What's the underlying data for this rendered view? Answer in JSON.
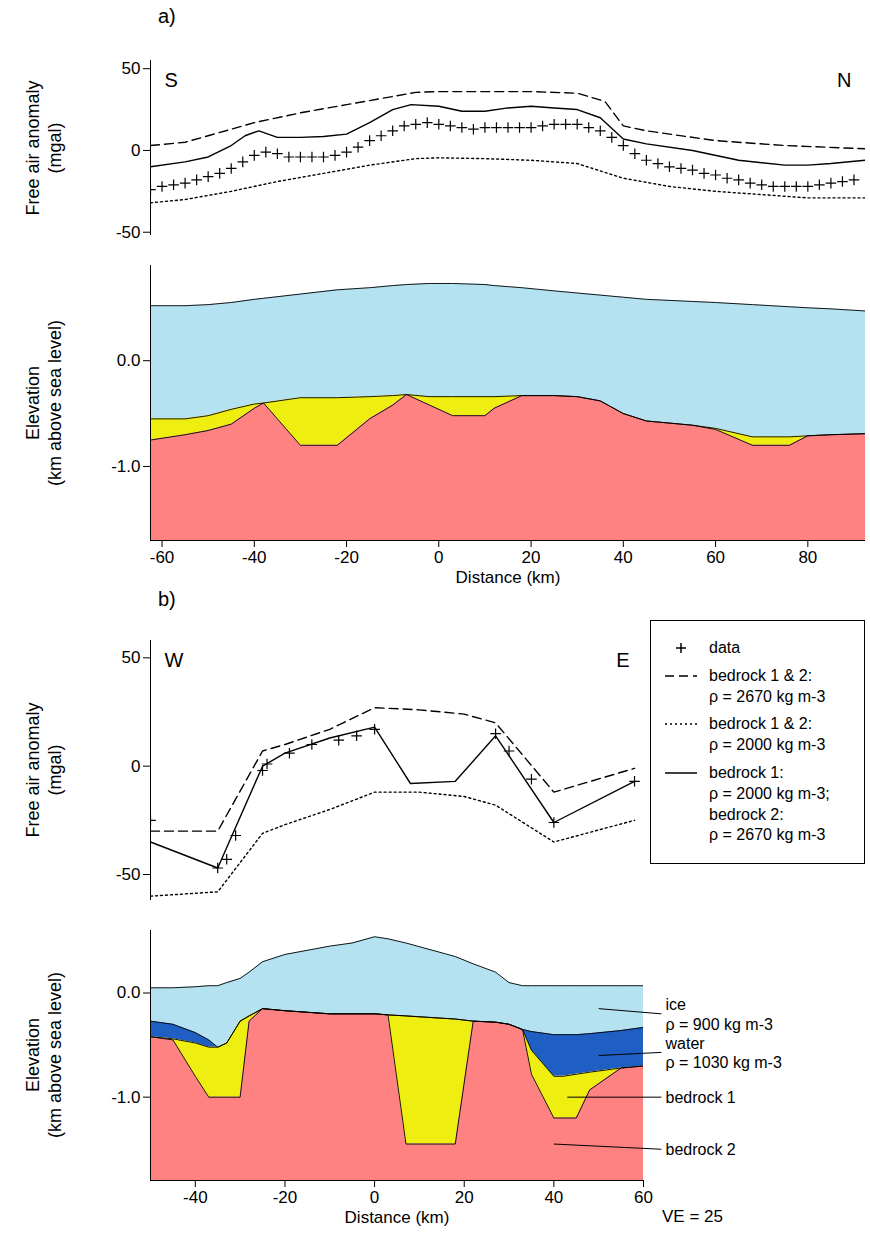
{
  "chart_data": [
    {
      "type": "line",
      "title": "a)",
      "annotations": [
        "S",
        "N"
      ],
      "y_label": "Free air anomaly (mgal)",
      "xlim": [
        -62.5,
        92.5
      ],
      "ylim": [
        -52,
        55
      ],
      "yticks": [
        -50,
        0,
        50
      ],
      "tick_labels": "y",
      "series": [
        {
          "name": "data",
          "color": "#000000",
          "marker": "plus",
          "x": [
            -62.5,
            -60,
            -57.5,
            -55,
            -52.5,
            -50,
            -47.5,
            -45,
            -42.5,
            -40,
            -37.5,
            -35,
            -32.5,
            -30,
            -27.5,
            -25,
            -22.5,
            -20,
            -17.5,
            -15,
            -12.5,
            -10,
            -7.5,
            -5,
            -2.5,
            0,
            2.5,
            5,
            7.5,
            10,
            12.5,
            15,
            17.5,
            20,
            22.5,
            25,
            27.5,
            30,
            32.5,
            35,
            37.5,
            40,
            42.5,
            45,
            47.5,
            50,
            52.5,
            55,
            57.5,
            60,
            62.5,
            65,
            67.5,
            70,
            72.5,
            75,
            77.5,
            80,
            82.5,
            85,
            87.5,
            90
          ],
          "values": [
            -24,
            -22,
            -21,
            -20,
            -18,
            -16,
            -14,
            -11,
            -7,
            -3,
            -1,
            -2,
            -4,
            -4,
            -4,
            -4,
            -3,
            -1,
            2,
            6,
            9,
            12,
            15,
            16,
            17,
            16,
            15,
            14,
            13,
            14,
            14,
            14,
            14,
            14,
            15,
            16,
            16,
            16,
            14,
            12,
            8,
            3,
            -2,
            -6,
            -8,
            -10,
            -11,
            -12,
            -14,
            -15,
            -17,
            -18,
            -20,
            -21,
            -22,
            -22,
            -22,
            -22,
            -21,
            -20,
            -19,
            -18
          ]
        },
        {
          "name": "bedrock 1 & 2: ρ = 2670 kg m-3",
          "color": "#000000",
          "line_style": "dashed",
          "x": [
            -62.5,
            -55,
            -45,
            -40,
            -30,
            -20,
            -10,
            -5,
            0,
            10,
            20,
            30,
            36,
            40,
            45,
            60,
            75,
            92.5
          ],
          "values": [
            3,
            5,
            13,
            17,
            23,
            28,
            33,
            35.5,
            36,
            36,
            36,
            35,
            30,
            15,
            12,
            6,
            3,
            1
          ]
        },
        {
          "name": "bedrock 1 & 2: ρ = 2000 kg m-3",
          "color": "#000000",
          "line_style": "dotted",
          "x": [
            -62.5,
            -55,
            -45,
            -35,
            -25,
            -15,
            -5,
            0,
            10,
            20,
            30,
            40,
            50,
            60,
            70,
            80,
            92.5
          ],
          "values": [
            -32,
            -30,
            -25,
            -19,
            -14,
            -9,
            -5,
            -4.5,
            -5,
            -6,
            -8,
            -17,
            -22,
            -25,
            -27,
            -29,
            -29
          ]
        },
        {
          "name": "bedrock 1: ρ = 2000 kg m-3; bedrock 2: ρ = 2670 kg m-3",
          "color": "#000000",
          "line_style": "solid",
          "x": [
            -62.5,
            -55,
            -50,
            -45,
            -42,
            -39,
            -35,
            -30,
            -25,
            -20,
            -15,
            -10,
            -6,
            0,
            5,
            10,
            15,
            20,
            25,
            30,
            35,
            40,
            45,
            55,
            65,
            75,
            80,
            85,
            92.5
          ],
          "values": [
            -10,
            -7,
            -4,
            3,
            9,
            12,
            8,
            8,
            8.5,
            10,
            17,
            25,
            28,
            27,
            24,
            24,
            26,
            27,
            26,
            25,
            20,
            7,
            4,
            0,
            -6,
            -9,
            -9,
            -8,
            -6
          ]
        }
      ]
    },
    {
      "type": "area",
      "x_label": "Distance (km)",
      "y_label": "Elevation (km above sea level)",
      "xlim": [
        -62.5,
        92.5
      ],
      "ylim": [
        -1.7,
        0.9
      ],
      "xticks": [
        -60,
        -40,
        -20,
        0,
        20,
        40,
        60,
        80
      ],
      "yticks": [
        {
          "value": 0,
          "label": "0.0"
        },
        {
          "value": -1,
          "label": "-1.0"
        }
      ],
      "x": [
        -62.5,
        -55,
        -50,
        -45,
        -40,
        -38,
        -30,
        -22,
        -15,
        -10,
        -7,
        -2,
        3,
        10,
        12,
        18,
        25,
        30,
        35,
        40,
        45,
        55,
        60,
        68,
        76,
        80,
        85,
        92.5
      ],
      "series": [
        {
          "color": "#b5e2f0",
          "values": [
            0.52,
            0.52,
            0.53,
            0.55,
            0.58,
            0.59,
            0.63,
            0.67,
            0.69,
            0.71,
            0.72,
            0.73,
            0.73,
            0.72,
            0.71,
            0.69,
            0.66,
            0.64,
            0.62,
            0.6,
            0.58,
            0.56,
            0.55,
            0.53,
            0.51,
            0.5,
            0.49,
            0.47
          ]
        },
        {
          "color": "#eeee10",
          "values": [
            -0.55,
            -0.55,
            -0.52,
            -0.46,
            -0.41,
            -0.4,
            -0.35,
            -0.35,
            -0.34,
            -0.33,
            -0.32,
            -0.34,
            -0.34,
            -0.34,
            -0.34,
            -0.33,
            -0.33,
            -0.34,
            -0.38,
            -0.5,
            -0.57,
            -0.61,
            -0.64,
            -0.72,
            -0.72,
            -0.71,
            -0.7,
            -0.69
          ]
        },
        {
          "color": "#ff8282",
          "values": [
            -0.75,
            -0.7,
            -0.66,
            -0.6,
            -0.45,
            -0.4,
            -0.8,
            -0.8,
            -0.55,
            -0.42,
            -0.32,
            -0.42,
            -0.52,
            -0.52,
            -0.45,
            -0.33,
            -0.33,
            -0.34,
            -0.38,
            -0.5,
            -0.57,
            -0.61,
            -0.65,
            -0.8,
            -0.8,
            -0.71,
            -0.7,
            -0.69
          ]
        }
      ]
    },
    {
      "type": "line",
      "title": "b)",
      "annotations": [
        "W",
        "E"
      ],
      "y_label": "Free air anomaly (mgal)",
      "xlim": [
        -50,
        60
      ],
      "ylim": [
        -62,
        58
      ],
      "yticks": [
        -50,
        0,
        50
      ],
      "tick_labels": "y",
      "legend": "right",
      "series": [
        {
          "name": "data",
          "color": "#000000",
          "marker": "plus",
          "x": [
            -50,
            -35,
            -33,
            -31,
            -25,
            -24,
            -19,
            -14,
            -8,
            -4,
            0,
            27,
            30,
            35,
            40,
            58
          ],
          "values": [
            -25,
            -47,
            -43,
            -32,
            -2,
            1,
            6,
            10,
            12,
            14,
            17,
            15,
            7,
            -6,
            -26,
            -7
          ]
        },
        {
          "name": "bedrock 1 & 2: ρ = 2670 kg m-3",
          "color": "#000000",
          "line_style": "dashed",
          "x": [
            -50,
            -35,
            -25,
            -20,
            -10,
            0,
            10,
            20,
            27,
            40,
            58
          ],
          "values": [
            -30,
            -30,
            7,
            10,
            17,
            27,
            26,
            24,
            20,
            -12,
            -1
          ]
        },
        {
          "name": "bedrock 1 & 2: ρ = 2000 kg m-3",
          "color": "#000000",
          "line_style": "dotted",
          "x": [
            -50,
            -35,
            -25,
            -20,
            -10,
            0,
            10,
            20,
            27,
            40,
            58
          ],
          "values": [
            -60,
            -58,
            -31,
            -27,
            -20,
            -12,
            -12,
            -14,
            -18,
            -35,
            -25
          ]
        },
        {
          "name": "bedrock 1: ρ = 2000 kg m-3; bedrock 2: ρ = 2670 kg m-3",
          "color": "#000000",
          "line_style": "solid",
          "x": [
            -50,
            -35,
            -25,
            -20,
            -10,
            0,
            8,
            18,
            27,
            40,
            58
          ],
          "values": [
            -35,
            -47,
            0,
            6,
            13,
            18,
            -8,
            -7,
            14,
            -26,
            -7
          ]
        }
      ]
    },
    {
      "type": "area",
      "x_label": "Distance (km)",
      "y_label": "Elevation (km above sea level)",
      "annotations": [
        "VE = 25"
      ],
      "xlim": [
        -50,
        60
      ],
      "ylim": [
        -1.8,
        0.6
      ],
      "xticks": [
        -40,
        -20,
        0,
        20,
        40,
        60
      ],
      "yticks": [
        {
          "value": 0,
          "label": "0.0"
        },
        {
          "value": -1,
          "label": "-1.0"
        }
      ],
      "x": [
        -50,
        -45,
        -40,
        -37,
        -35,
        -33,
        -30,
        -28,
        -25,
        -20,
        -10,
        -5,
        0,
        3,
        7,
        18,
        22,
        27,
        30,
        33,
        35,
        40,
        42,
        45,
        48,
        55,
        60
      ],
      "series": [
        {
          "name": "ice",
          "label": "ρ = 900 kg m-3",
          "color": "#b5e2f0",
          "values": [
            0.05,
            0.05,
            0.06,
            0.07,
            0.07,
            0.1,
            0.14,
            0.2,
            0.3,
            0.37,
            0.45,
            0.48,
            0.54,
            0.52,
            0.48,
            0.35,
            0.28,
            0.2,
            0.1,
            0.07,
            0.07,
            0.07,
            0.07,
            0.07,
            0.07,
            0.07,
            0.07
          ]
        },
        {
          "name": "water",
          "label": "ρ = 1030 kg m-3",
          "color": "#1f5fc4",
          "values": [
            -0.27,
            -0.3,
            -0.38,
            -0.45,
            -0.52,
            -0.48,
            -0.27,
            -0.22,
            -0.15,
            -0.17,
            -0.2,
            -0.2,
            -0.2,
            -0.21,
            -0.22,
            -0.25,
            -0.27,
            -0.28,
            -0.3,
            -0.35,
            -0.37,
            -0.4,
            -0.4,
            -0.4,
            -0.39,
            -0.36,
            -0.33
          ]
        },
        {
          "name": "bedrock 1",
          "color": "#eeee10",
          "values": [
            -0.42,
            -0.44,
            -0.48,
            -0.52,
            -0.52,
            -0.48,
            -0.27,
            -0.22,
            -0.15,
            -0.17,
            -0.2,
            -0.2,
            -0.2,
            -0.21,
            -0.22,
            -0.25,
            -0.27,
            -0.28,
            -0.3,
            -0.35,
            -0.55,
            -0.8,
            -0.8,
            -0.78,
            -0.76,
            -0.72,
            -0.7
          ]
        },
        {
          "name": "bedrock 2",
          "color": "#ff8282",
          "values": [
            -0.42,
            -0.45,
            -0.8,
            -1.0,
            -1.0,
            -1.0,
            -1.0,
            -0.27,
            -0.15,
            -0.17,
            -0.2,
            -0.2,
            -0.2,
            -0.21,
            -1.45,
            -1.45,
            -0.27,
            -0.28,
            -0.3,
            -0.35,
            -0.78,
            -1.2,
            -1.2,
            -1.2,
            -0.93,
            -0.72,
            -0.7
          ]
        }
      ]
    }
  ]
}
